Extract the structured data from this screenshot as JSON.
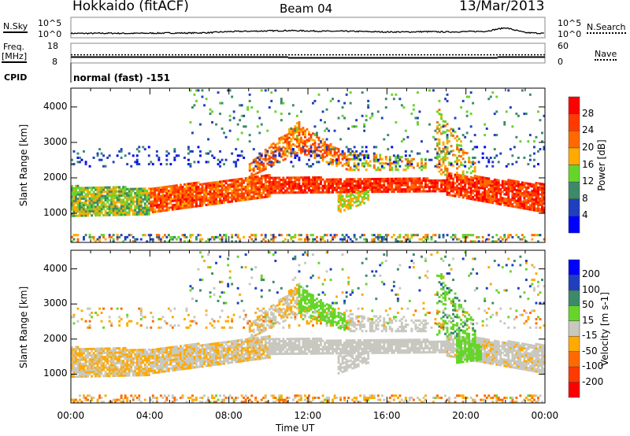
{
  "header": {
    "station": "Hokkaido (fitACF)",
    "beam": "Beam 04",
    "date": "13/Mar/2013"
  },
  "noise_panel": {
    "left_label": "N.Sky",
    "right_label": "N.Search",
    "ticks_left": [
      "10^5",
      "10^0"
    ],
    "ticks_right": [
      "10^5",
      "10^0"
    ],
    "nsky_log10_hourly": [
      0.4,
      0.4,
      0.45,
      0.4,
      0.45,
      0.5,
      0.5,
      0.6,
      0.9,
      1.0,
      1.1,
      1.2,
      1.1,
      1.0,
      1.0,
      0.9,
      0.8,
      0.8,
      0.9,
      0.8,
      0.9,
      1.0,
      2.0,
      0.6,
      0.4
    ]
  },
  "freq_panel": {
    "left_label_1": "Freq.",
    "left_label_2": "[MHz]",
    "right_label": "Nave",
    "ticks_left": [
      "18",
      "8"
    ],
    "ticks_right": [
      "60",
      "0"
    ],
    "freq_segments": [
      {
        "t0": 0,
        "t1": 11,
        "mhz": 11
      },
      {
        "t0": 11,
        "t1": 21.6,
        "mhz": 10.6
      },
      {
        "t0": 21.6,
        "t1": 24,
        "mhz": 11
      }
    ],
    "nave": 25
  },
  "cpid": {
    "label": "CPID",
    "value": "normal (fast) -151"
  },
  "chart_data": [
    {
      "type": "heatmap",
      "name": "power",
      "ylabel": "Slant Range [km]",
      "xlabel": "Time UT",
      "xlim": [
        0,
        24
      ],
      "ylim": [
        180,
        4530
      ],
      "yticks": [
        "1000",
        "2000",
        "3000",
        "4000"
      ],
      "xticks": [
        "00:00",
        "04:00",
        "08:00",
        "12:00",
        "16:00",
        "20:00",
        "00:00"
      ],
      "colorbar": {
        "label": "Power [dB]",
        "ticks": [
          "28",
          "24",
          "20",
          "16",
          "12",
          "8",
          "4"
        ],
        "colors": [
          "#0000ff",
          "#1f3fbf",
          "#3c8a6a",
          "#66d52a",
          "#ffaa00",
          "#ff6a00",
          "#ff3a00",
          "#ff0000"
        ]
      },
      "regions": [
        {
          "t": [
            0,
            4
          ],
          "lo": [
            900,
            950
          ],
          "hi": [
            1750,
            1700
          ],
          "val": [
            8,
            20
          ],
          "d": 0.85
        },
        {
          "t": [
            4,
            10
          ],
          "lo": [
            1000,
            1450
          ],
          "hi": [
            1700,
            2050
          ],
          "val": [
            18,
            30
          ],
          "d": 0.9
        },
        {
          "t": [
            10,
            19
          ],
          "lo": [
            1550,
            1600
          ],
          "hi": [
            2000,
            1950
          ],
          "val": [
            22,
            32
          ],
          "d": 0.9
        },
        {
          "t": [
            19,
            24
          ],
          "lo": [
            1500,
            1000
          ],
          "hi": [
            2100,
            1800
          ],
          "val": [
            20,
            32
          ],
          "d": 0.9
        },
        {
          "t": [
            9,
            11.5
          ],
          "lo": [
            2000,
            2700
          ],
          "hi": [
            2400,
            3600
          ],
          "val": [
            16,
            28
          ],
          "d": 0.6
        },
        {
          "t": [
            11.5,
            14
          ],
          "lo": [
            2700,
            2200
          ],
          "hi": [
            3500,
            2600
          ],
          "val": [
            16,
            28
          ],
          "d": 0.6
        },
        {
          "t": [
            14,
            18
          ],
          "lo": [
            2200,
            2200
          ],
          "hi": [
            2700,
            2500
          ],
          "val": [
            12,
            24
          ],
          "d": 0.5
        },
        {
          "t": [
            13.5,
            15
          ],
          "lo": [
            1000,
            1300
          ],
          "hi": [
            1500,
            1600
          ],
          "val": [
            12,
            20
          ],
          "d": 0.7
        },
        {
          "t": [
            18.5,
            20.5
          ],
          "lo": [
            2100,
            1900
          ],
          "hi": [
            4000,
            2400
          ],
          "val": [
            12,
            24
          ],
          "d": 0.4
        },
        {
          "t": [
            0,
            24
          ],
          "lo": [
            2300,
            2300
          ],
          "hi": [
            2900,
            2900
          ],
          "val": [
            2,
            10
          ],
          "d": 0.12
        },
        {
          "t": [
            0,
            24
          ],
          "lo": [
            180,
            180
          ],
          "hi": [
            400,
            400
          ],
          "val": [
            4,
            24
          ],
          "d": 0.35
        },
        {
          "t": [
            6,
            24
          ],
          "lo": [
            3000,
            3000
          ],
          "hi": [
            4500,
            4500
          ],
          "val": [
            4,
            16
          ],
          "d": 0.05
        }
      ]
    },
    {
      "type": "heatmap",
      "name": "velocity",
      "ylabel": "Slant Range [km]",
      "xlabel": "Time UT",
      "xlim": [
        0,
        24
      ],
      "ylim": [
        180,
        4530
      ],
      "yticks": [
        "1000",
        "2000",
        "3000",
        "4000"
      ],
      "xticks": [
        "00:00",
        "04:00",
        "08:00",
        "12:00",
        "16:00",
        "20:00",
        "00:00"
      ],
      "colorbar": {
        "label": "Velocity [m s-1]",
        "ticks": [
          "200",
          "100",
          "50",
          "15",
          "-15",
          "-50",
          "-100",
          "-200"
        ],
        "colors": [
          "#ff0000",
          "#ff3a00",
          "#ff6a00",
          "#ffaa00",
          "#c8c8c0",
          "#66d52a",
          "#3c8a6a",
          "#1f3fbf",
          "#0000ff"
        ]
      },
      "regions": [
        {
          "t": [
            0,
            4
          ],
          "lo": [
            900,
            950
          ],
          "hi": [
            1750,
            1700
          ],
          "val": [
            -40,
            10
          ],
          "d": 0.85
        },
        {
          "t": [
            4,
            10
          ],
          "lo": [
            1000,
            1450
          ],
          "hi": [
            1700,
            2050
          ],
          "val": [
            -30,
            10
          ],
          "d": 0.9
        },
        {
          "t": [
            10,
            19
          ],
          "lo": [
            1550,
            1600
          ],
          "hi": [
            2000,
            1950
          ],
          "val": [
            -14,
            14
          ],
          "d": 0.9
        },
        {
          "t": [
            19,
            24
          ],
          "lo": [
            1500,
            1000
          ],
          "hi": [
            2100,
            1800
          ],
          "val": [
            -20,
            12
          ],
          "d": 0.9
        },
        {
          "t": [
            9,
            11.5
          ],
          "lo": [
            2000,
            2700
          ],
          "hi": [
            2400,
            3600
          ],
          "val": [
            -30,
            10
          ],
          "d": 0.6
        },
        {
          "t": [
            11.5,
            14
          ],
          "lo": [
            2700,
            2200
          ],
          "hi": [
            3500,
            2600
          ],
          "val": [
            18,
            45
          ],
          "d": 0.7
        },
        {
          "t": [
            14,
            18
          ],
          "lo": [
            2200,
            2200
          ],
          "hi": [
            2700,
            2500
          ],
          "val": [
            -14,
            14
          ],
          "d": 0.5
        },
        {
          "t": [
            13.5,
            15
          ],
          "lo": [
            1000,
            1300
          ],
          "hi": [
            1500,
            1600
          ],
          "val": [
            -14,
            14
          ],
          "d": 0.7
        },
        {
          "t": [
            19.5,
            20.8
          ],
          "lo": [
            1300,
            1400
          ],
          "hi": [
            2000,
            1800
          ],
          "val": [
            18,
            45
          ],
          "d": 0.8
        },
        {
          "t": [
            18.5,
            20.5
          ],
          "lo": [
            2100,
            1900
          ],
          "hi": [
            4000,
            2400
          ],
          "val": [
            15,
            60
          ],
          "d": 0.4
        },
        {
          "t": [
            0,
            24
          ],
          "lo": [
            2300,
            2300
          ],
          "hi": [
            2900,
            2900
          ],
          "val": [
            -60,
            20
          ],
          "d": 0.12
        },
        {
          "t": [
            0,
            24
          ],
          "lo": [
            180,
            180
          ],
          "hi": [
            400,
            400
          ],
          "val": [
            -80,
            20
          ],
          "d": 0.35
        },
        {
          "t": [
            6,
            24
          ],
          "lo": [
            3000,
            3000
          ],
          "hi": [
            4500,
            4500
          ],
          "val": [
            -50,
            150
          ],
          "d": 0.05
        }
      ]
    }
  ]
}
